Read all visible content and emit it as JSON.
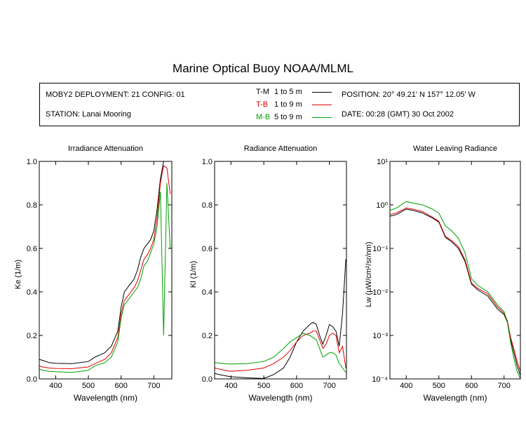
{
  "title": "Marine Optical Buoy NOAA/MLML",
  "header": {
    "deployment": "MOBY2 DEPLOYMENT: 21 CONFIG: 01",
    "station": "STATION: Lanai Mooring",
    "position": "POSITION: 20° 49.21' N   157° 12.05' W",
    "date": "DATE: 00:28 (GMT) 30 Oct 2002"
  },
  "legend": [
    {
      "code": "T-M",
      "range": "1 to 5  m",
      "color": "#000000"
    },
    {
      "code": "T-B",
      "range": "1 to 9  m",
      "color": "#e00000"
    },
    {
      "code": "M-B",
      "range": "5 to 9  m",
      "color": "#00a000"
    }
  ],
  "chart_data": [
    {
      "type": "line",
      "title": "Irradiance Attenuation",
      "xlabel": "Wavelength (nm)",
      "ylabel": "Ke  (1/m)",
      "xlim": [
        350,
        755
      ],
      "ylim": [
        0,
        1.0
      ],
      "xticks": [
        400,
        500,
        600,
        700
      ],
      "yticks": [
        0.0,
        0.2,
        0.4,
        0.6,
        0.8,
        1.0
      ],
      "ytick_labels": [
        "0.0",
        "0.2",
        "0.4",
        "0.6",
        "0.8",
        "1.0"
      ],
      "x": [
        350,
        360,
        380,
        400,
        450,
        500,
        520,
        550,
        570,
        590,
        600,
        610,
        620,
        640,
        650,
        660,
        670,
        680,
        690,
        700,
        710,
        720,
        730,
        740,
        750
      ],
      "series": [
        {
          "name": "T-M",
          "color": "#000000",
          "values": [
            0.09,
            0.085,
            0.075,
            0.072,
            0.07,
            0.08,
            0.1,
            0.12,
            0.15,
            0.22,
            0.33,
            0.4,
            0.42,
            0.46,
            0.5,
            0.56,
            0.6,
            0.62,
            0.64,
            0.68,
            0.78,
            0.92,
            1.0,
            1.0,
            1.0
          ]
        },
        {
          "name": "T-B",
          "color": "#e00000",
          "values": [
            0.06,
            0.055,
            0.05,
            0.048,
            0.047,
            0.055,
            0.07,
            0.09,
            0.12,
            0.19,
            0.3,
            0.36,
            0.38,
            0.42,
            0.45,
            0.5,
            0.55,
            0.57,
            0.6,
            0.64,
            0.74,
            0.9,
            0.98,
            0.97,
            0.85
          ]
        },
        {
          "name": "M-B",
          "color": "#00a000",
          "values": [
            0.045,
            0.04,
            0.035,
            0.033,
            0.03,
            0.04,
            0.06,
            0.075,
            0.1,
            0.17,
            0.28,
            0.34,
            0.36,
            0.4,
            0.42,
            0.46,
            0.52,
            0.54,
            0.58,
            0.62,
            0.7,
            0.86,
            0.2,
            0.9,
            0.6
          ]
        }
      ]
    },
    {
      "type": "line",
      "title": "Radiance Attenuation",
      "xlabel": "Wavelength (nm)",
      "ylabel": "Kl  (1/m)",
      "xlim": [
        350,
        752
      ],
      "ylim": [
        0,
        1.0
      ],
      "xticks": [
        400,
        500,
        600,
        700
      ],
      "yticks": [
        0.0,
        0.2,
        0.4,
        0.6,
        0.8,
        1.0
      ],
      "ytick_labels": [
        "0.0",
        "0.2",
        "0.4",
        "0.6",
        "0.8",
        "1.0"
      ],
      "x": [
        350,
        380,
        400,
        450,
        500,
        530,
        560,
        580,
        600,
        620,
        640,
        650,
        660,
        670,
        680,
        690,
        700,
        710,
        720,
        730,
        740,
        750
      ],
      "series": [
        {
          "name": "T-M",
          "color": "#000000",
          "values": [
            0.025,
            0.015,
            0.01,
            0.005,
            0.002,
            0.02,
            0.05,
            0.1,
            0.17,
            0.22,
            0.25,
            0.26,
            0.25,
            0.2,
            0.16,
            0.2,
            0.25,
            0.24,
            0.22,
            0.15,
            0.3,
            0.55
          ]
        },
        {
          "name": "T-B",
          "color": "#e00000",
          "values": [
            0.05,
            0.04,
            0.035,
            0.04,
            0.05,
            0.07,
            0.1,
            0.13,
            0.17,
            0.2,
            0.21,
            0.22,
            0.22,
            0.18,
            0.14,
            0.16,
            0.2,
            0.21,
            0.2,
            0.12,
            0.15,
            0.05
          ]
        },
        {
          "name": "M-B",
          "color": "#00a000",
          "values": [
            0.075,
            0.07,
            0.068,
            0.07,
            0.08,
            0.1,
            0.14,
            0.17,
            0.19,
            0.21,
            0.2,
            0.19,
            0.18,
            0.14,
            0.1,
            0.11,
            0.12,
            0.12,
            0.11,
            0.07,
            0.05,
            0.03
          ]
        }
      ]
    },
    {
      "type": "line",
      "title": "Water Leaving Radiance",
      "xlabel": "Wavelength (nm)",
      "ylabel": "Lw  (µW/cm²/sr/nm)",
      "scale_y": "log",
      "xlim": [
        350,
        750
      ],
      "ylim": [
        0.0001,
        10
      ],
      "xticks": [
        400,
        500,
        600,
        700
      ],
      "yticks": [
        0.0001,
        0.001,
        0.01,
        0.1,
        1,
        10
      ],
      "ytick_labels": [
        "10⁻⁴",
        "10⁻³",
        "10⁻²",
        "10⁻¹",
        "10⁰",
        "10¹"
      ],
      "x": [
        350,
        370,
        400,
        420,
        450,
        480,
        500,
        520,
        540,
        560,
        580,
        600,
        620,
        650,
        680,
        700,
        710,
        720,
        730,
        740,
        750
      ],
      "series": [
        {
          "name": "T-M",
          "color": "#000000",
          "values": [
            0.55,
            0.6,
            0.8,
            0.75,
            0.65,
            0.5,
            0.4,
            0.18,
            0.14,
            0.1,
            0.05,
            0.015,
            0.011,
            0.008,
            0.004,
            0.003,
            0.002,
            0.0008,
            0.0004,
            0.0002,
            0.00012
          ]
        },
        {
          "name": "T-B",
          "color": "#e00000",
          "values": [
            0.6,
            0.65,
            0.85,
            0.8,
            0.7,
            0.52,
            0.42,
            0.19,
            0.15,
            0.11,
            0.055,
            0.016,
            0.012,
            0.009,
            0.0045,
            0.0032,
            0.0022,
            0.0009,
            0.0005,
            0.00025,
            0.00015
          ]
        },
        {
          "name": "M-B",
          "color": "#00a000",
          "values": [
            0.75,
            0.85,
            1.2,
            1.1,
            1.0,
            0.8,
            0.65,
            0.33,
            0.25,
            0.17,
            0.08,
            0.02,
            0.014,
            0.01,
            0.005,
            0.0035,
            0.002,
            0.0007,
            0.0003,
            0.00015,
            0.0001
          ]
        }
      ]
    }
  ]
}
